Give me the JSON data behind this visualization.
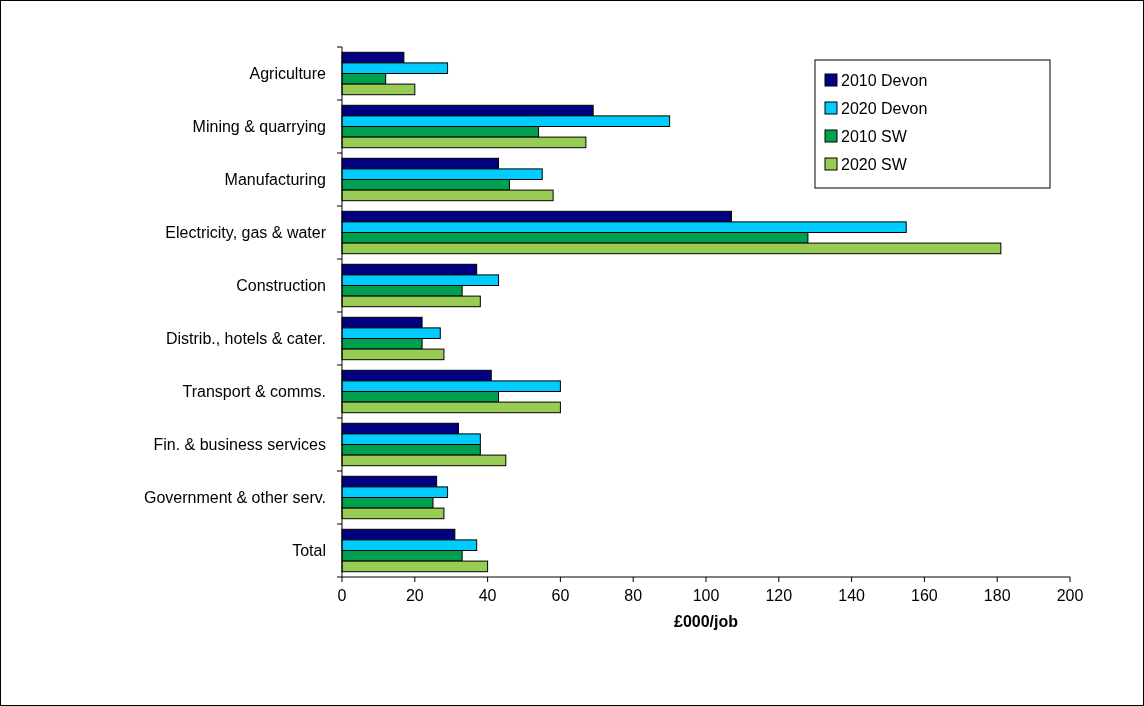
{
  "chart_data": {
    "type": "bar",
    "orientation": "horizontal",
    "xlabel": "£000/job",
    "categories": [
      "Agriculture",
      "Mining & quarrying",
      "Manufacturing",
      "Electricity, gas & water",
      "Construction",
      "Distrib., hotels & cater.",
      "Transport & comms.",
      "Fin. & business services",
      "Government & other serv.",
      "Total"
    ],
    "series": [
      {
        "name": "2010 Devon",
        "color": "#000080",
        "values": [
          17,
          69,
          43,
          107,
          37,
          22,
          41,
          32,
          26,
          31
        ]
      },
      {
        "name": "2020 Devon",
        "color": "#00ccff",
        "values": [
          29,
          90,
          55,
          155,
          43,
          27,
          60,
          38,
          29,
          37
        ]
      },
      {
        "name": "2010 SW",
        "color": "#00a050",
        "values": [
          12,
          54,
          46,
          128,
          33,
          22,
          43,
          38,
          25,
          33
        ]
      },
      {
        "name": "2020 SW",
        "color": "#99cc55",
        "values": [
          20,
          67,
          58,
          181,
          38,
          28,
          60,
          45,
          28,
          40
        ]
      }
    ],
    "xlim": [
      0,
      200
    ],
    "xticks": [
      0,
      20,
      40,
      60,
      80,
      100,
      120,
      140,
      160,
      180,
      200
    ],
    "grid": false,
    "legend": "top right"
  }
}
